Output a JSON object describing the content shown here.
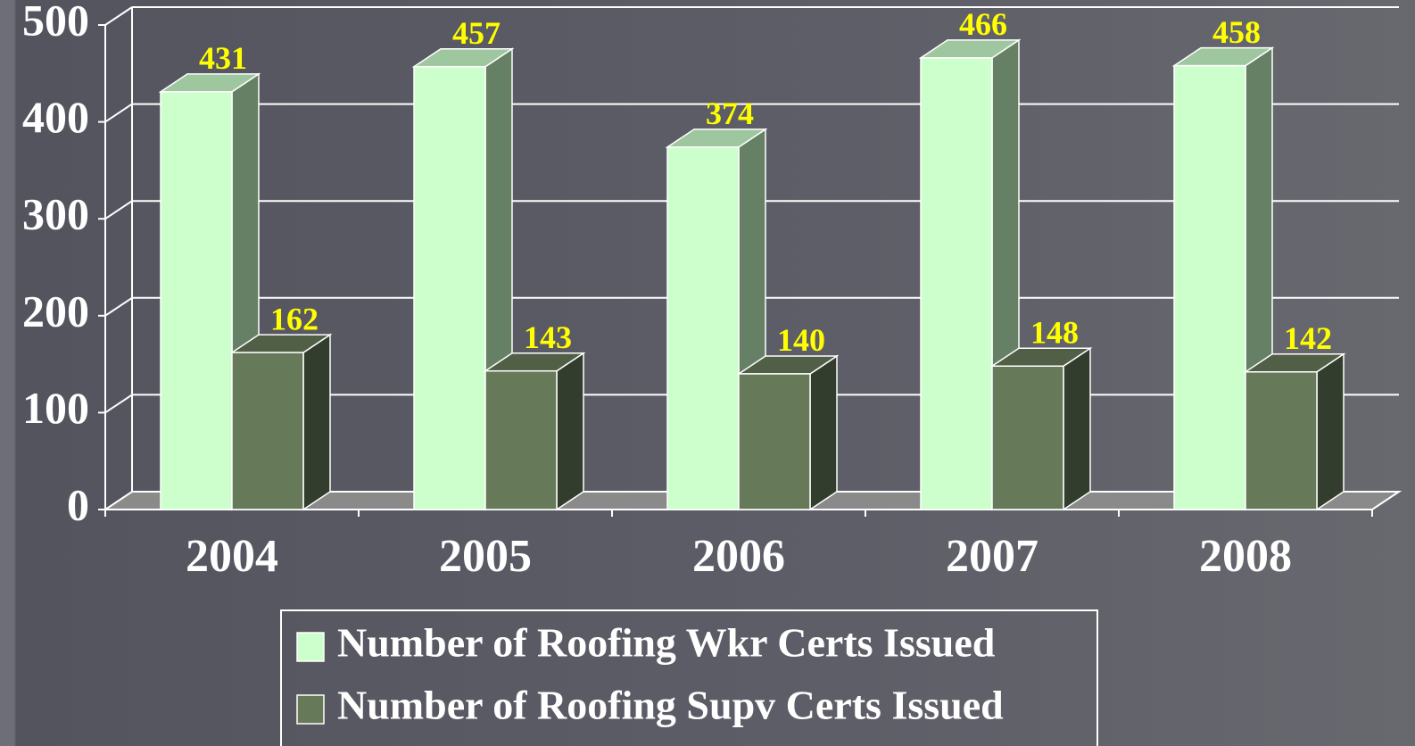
{
  "chart_data": {
    "type": "bar3d",
    "categories": [
      "2004",
      "2005",
      "2006",
      "2007",
      "2008"
    ],
    "series": [
      {
        "name": "Number of Roofing Wkr Certs Issued",
        "color": "#ccffcc",
        "values": [
          431,
          457,
          374,
          466,
          458
        ]
      },
      {
        "name": "Number of Roofing Supv Certs Issued",
        "color": "#667a5a",
        "values": [
          162,
          143,
          140,
          148,
          142
        ]
      }
    ],
    "ylim": [
      0,
      500
    ],
    "yticks": [
      0,
      100,
      200,
      300,
      400,
      500
    ],
    "grid": true,
    "legend": "bottom"
  }
}
